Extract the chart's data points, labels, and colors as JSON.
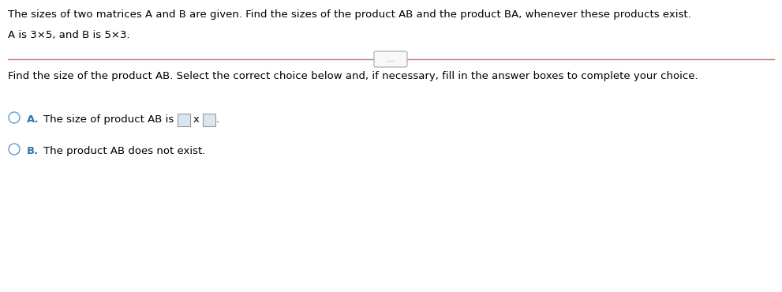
{
  "title_text": "The sizes of two matrices A and B are given. Find the sizes of the product AB and the product BA, whenever these products exist.",
  "matrix_text": "A is 3×5, and B is 5×3.",
  "divider_color": "#c08080",
  "dots_text": "...",
  "question_text": "Find the size of the product AB. Select the correct choice below and, if necessary, fill in the answer boxes to complete your choice.",
  "choice_a_label": "A.",
  "choice_a_text": "The size of product AB is",
  "choice_a_x_label": "x",
  "choice_b_label": "B.",
  "choice_b_text": "The product AB does not exist.",
  "circle_color": "#5b9bd5",
  "label_color": "#2e75b6",
  "background_color": "#ffffff",
  "text_color": "#000000",
  "font_size": 9.5,
  "box_fill": "#dce6f1",
  "box_edge": "#999999"
}
